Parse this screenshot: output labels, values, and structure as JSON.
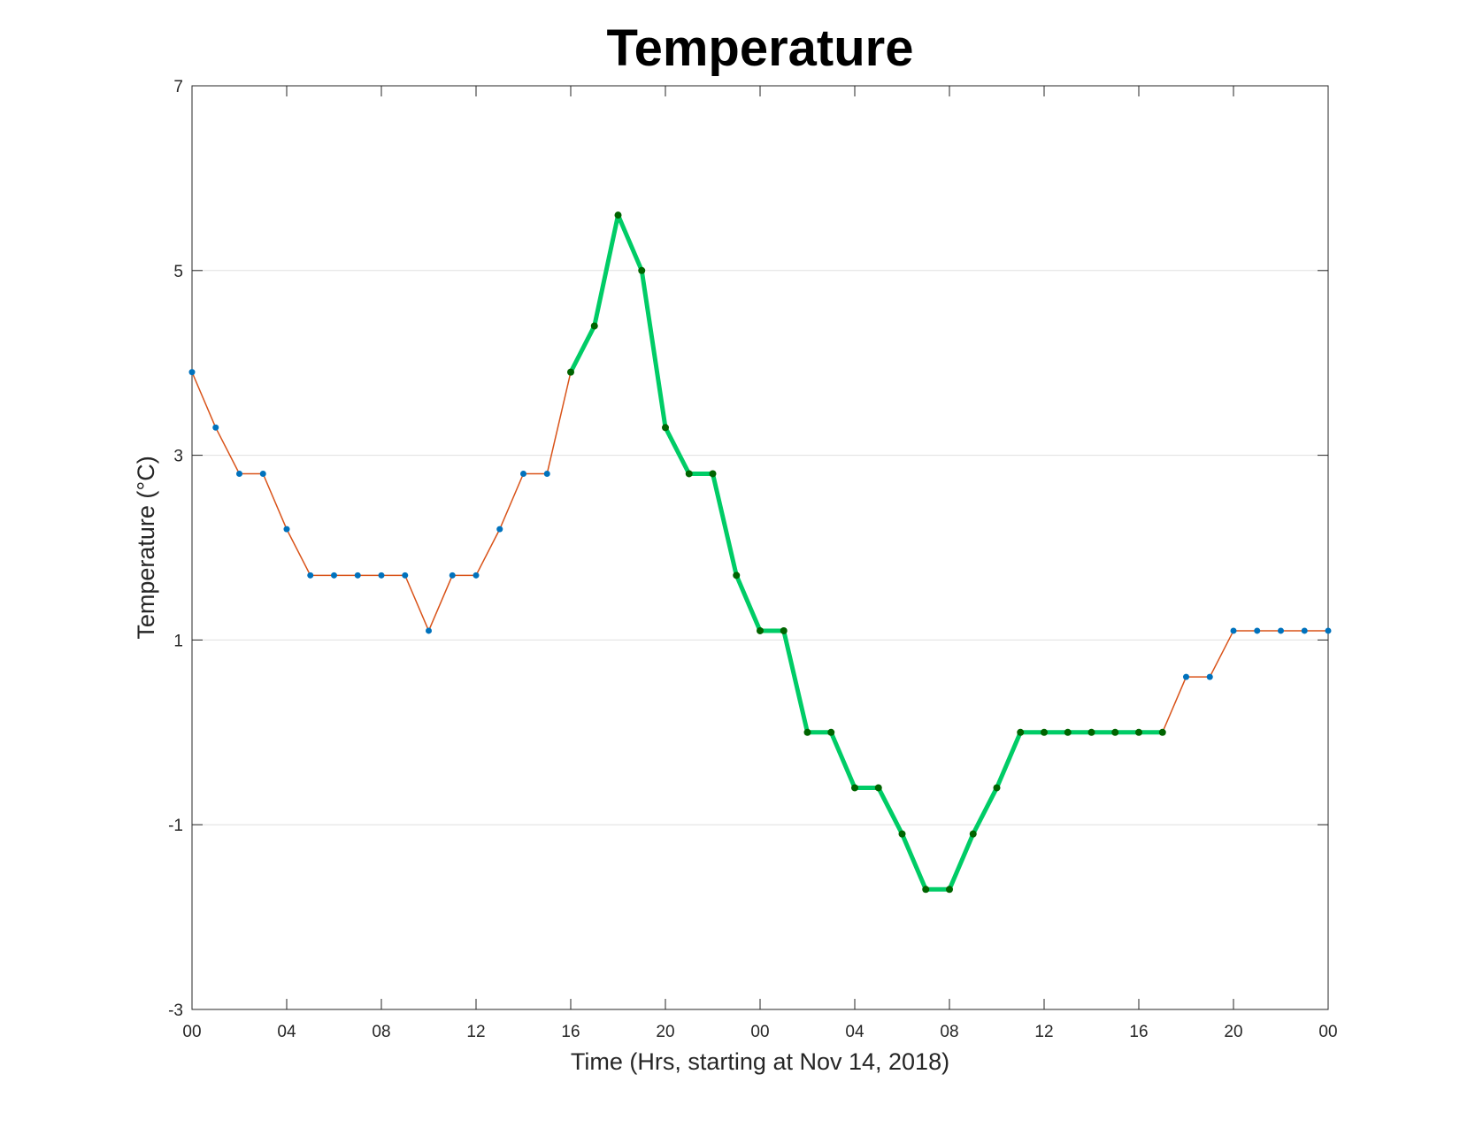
{
  "colors": {
    "base_line": "#D95319",
    "base_marker": "#0072BD",
    "highlight_line": "#00CC66",
    "highlight_marker": "#006400",
    "grid": "#E0E0E0",
    "axes": "#262626"
  },
  "chart_data": {
    "type": "line",
    "title": "Temperature",
    "xlabel": "Time (Hrs, starting at Nov 14, 2018)",
    "ylabel": "Temperature (°C)",
    "xlim": [
      0,
      48
    ],
    "ylim": [
      -3,
      7
    ],
    "grid": "horizontal",
    "x_ticks": [
      0,
      4,
      8,
      12,
      16,
      20,
      24,
      28,
      32,
      36,
      40,
      44,
      48
    ],
    "x_tick_labels": [
      "00",
      "04",
      "08",
      "12",
      "16",
      "20",
      "00",
      "04",
      "08",
      "12",
      "16",
      "20",
      "00"
    ],
    "y_ticks": [
      -3,
      -1,
      1,
      3,
      5,
      7
    ],
    "y_tick_labels": [
      "-3",
      "-1",
      "1",
      "3",
      "5",
      "7"
    ],
    "x": [
      0,
      1,
      2,
      3,
      4,
      5,
      6,
      7,
      8,
      9,
      10,
      11,
      12,
      13,
      14,
      15,
      16,
      17,
      18,
      19,
      20,
      21,
      22,
      23,
      24,
      25,
      26,
      27,
      28,
      29,
      30,
      31,
      32,
      33,
      34,
      35,
      36,
      37,
      38,
      39,
      40,
      41,
      42,
      43,
      44,
      45,
      46,
      47,
      48
    ],
    "series": [
      {
        "values": [
          3.9,
          3.3,
          2.8,
          2.8,
          2.2,
          1.7,
          1.7,
          1.7,
          1.7,
          1.7,
          1.1,
          1.7,
          1.7,
          2.2,
          2.8,
          2.8,
          3.9,
          4.4,
          5.6,
          5.0,
          3.3,
          2.8,
          2.8,
          1.7,
          1.1,
          1.1,
          0.0,
          0.0,
          -0.6,
          -0.6,
          -1.1,
          -1.7,
          -1.7,
          -1.1,
          -0.6,
          0.0,
          0.0,
          0.0,
          0.0,
          0.0,
          0.0,
          0.0,
          0.6,
          0.6,
          1.1,
          1.1,
          1.1,
          1.1,
          1.1
        ]
      }
    ],
    "highlight_range": [
      16,
      41
    ]
  }
}
